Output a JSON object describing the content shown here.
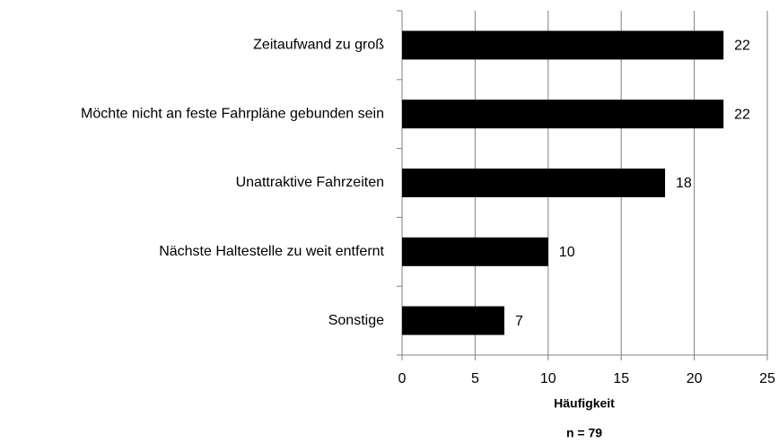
{
  "chart_data": {
    "type": "bar",
    "orientation": "horizontal",
    "categories": [
      "Zeitaufwand zu groß",
      "Möchte nicht an feste Fahrpläne gebunden sein",
      "Unattraktive Fahrzeiten",
      "Nächste Haltestelle zu weit entfernt",
      "Sonstige"
    ],
    "values": [
      22,
      22,
      18,
      10,
      7
    ],
    "color": "#000000",
    "xlim": [
      0,
      25
    ],
    "xticks": [
      0,
      5,
      10,
      15,
      20,
      25
    ],
    "grid": true,
    "xlabel": "Häufigkeit",
    "annotation": "n = 79"
  }
}
